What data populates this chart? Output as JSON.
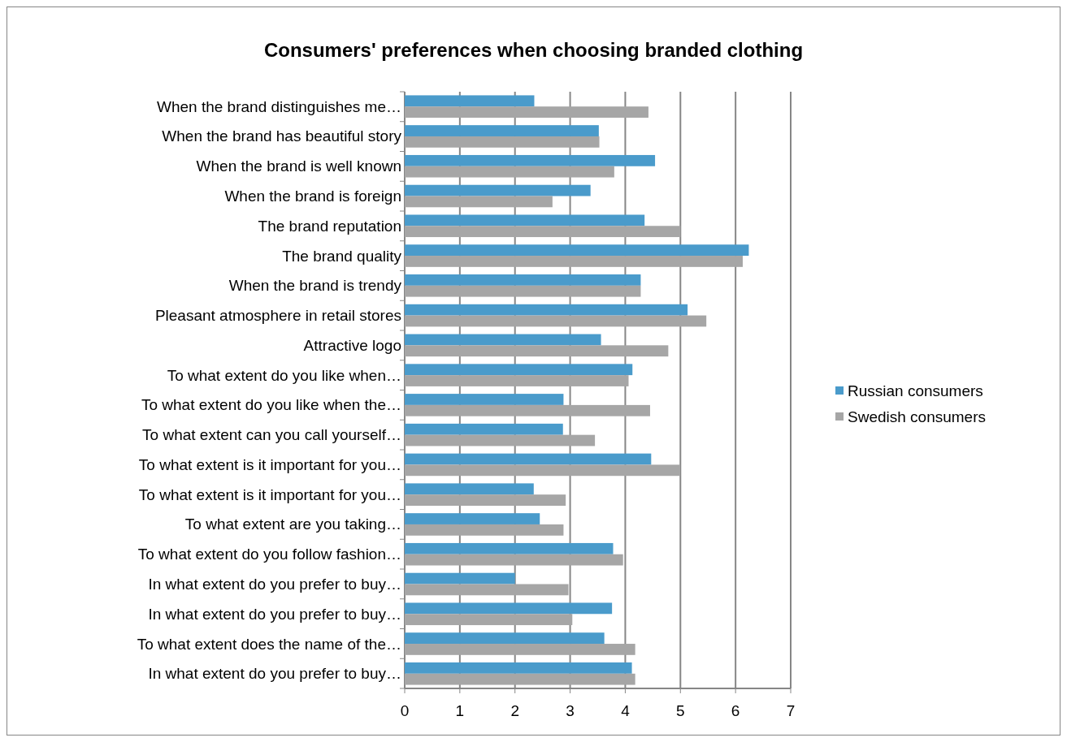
{
  "chart_data": {
    "type": "bar",
    "orientation": "horizontal",
    "title": "Consumers' preferences when choosing branded clothing",
    "categories": [
      "When the brand distinguishes me…",
      "When the brand has beautiful story",
      "When the brand is well known",
      "When the brand is foreign",
      "The brand reputation",
      "The brand quality",
      "When the brand is trendy",
      "Pleasant atmosphere in retail stores",
      "Attractive logo",
      "To what extent do you like when…",
      "To what extent do you like when the…",
      "To what extent can you call yourself…",
      "To what extent is it important for you…",
      "To what extent is it important for you…",
      "To what extent are you taking…",
      "To what extent do you follow fashion…",
      "In what extent do you prefer to buy…",
      "In what extent do you prefer to buy…",
      "To what extent does the name of the…",
      "In what extent do you prefer to buy…"
    ],
    "series": [
      {
        "name": "Russian consumers",
        "color": "#4a9bcb",
        "values": [
          2.35,
          3.52,
          4.54,
          3.37,
          4.35,
          6.24,
          4.28,
          5.13,
          3.56,
          4.13,
          2.88,
          2.87,
          4.47,
          2.34,
          2.45,
          3.78,
          2.0,
          3.76,
          3.62,
          4.12
        ]
      },
      {
        "name": "Swedish consumers",
        "color": "#a6a6a6",
        "values": [
          4.42,
          3.53,
          3.8,
          2.68,
          5.0,
          6.13,
          4.28,
          5.47,
          4.78,
          4.06,
          4.45,
          3.45,
          4.99,
          2.92,
          2.88,
          3.96,
          2.97,
          3.04,
          4.18,
          4.18
        ]
      }
    ],
    "xlim": [
      0,
      7
    ],
    "xticks": [
      0,
      1,
      2,
      3,
      4,
      5,
      6,
      7
    ],
    "grid": "x",
    "legend": "right"
  }
}
